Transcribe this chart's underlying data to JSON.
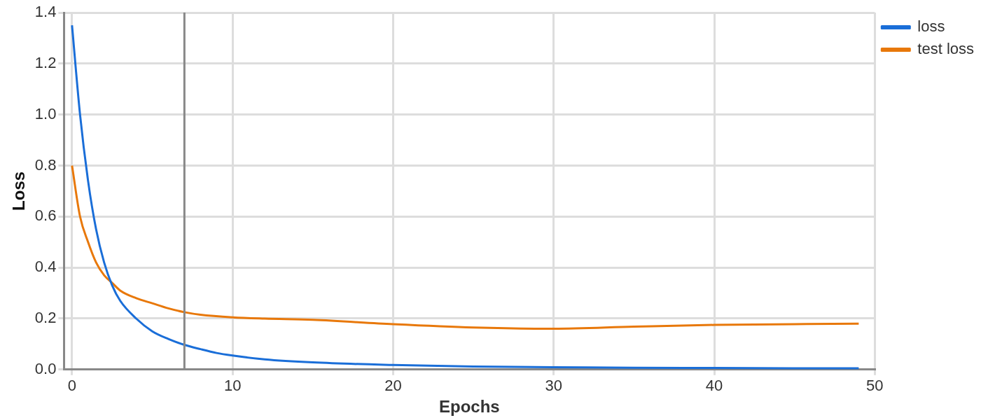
{
  "chart_data": {
    "type": "line",
    "xlabel": "Epochs",
    "ylabel": "Loss",
    "xlim": [
      -0.5,
      50
    ],
    "xticks": [
      0,
      10,
      20,
      30,
      40,
      50
    ],
    "ylim": [
      0,
      1.4
    ],
    "yticks": [
      {
        "value": 0,
        "label": "0.0"
      },
      {
        "value": 0.2,
        "label": "0.2"
      },
      {
        "value": 0.4,
        "label": "0.4"
      },
      {
        "value": 0.6,
        "label": "0.6"
      },
      {
        "value": 0.8,
        "label": "0.8"
      },
      {
        "value": 1,
        "label": "1.0"
      },
      {
        "value": 1.2,
        "label": "1.2"
      },
      {
        "value": 1.4,
        "label": "1.4"
      }
    ],
    "grid": true,
    "legend": "top right",
    "marker": "none",
    "ref_lines": [
      {
        "axis": "x",
        "value": 7,
        "color": "#888888"
      }
    ],
    "series": [
      {
        "name": "loss",
        "color": "#1a6ed8",
        "x": [
          0,
          0.5,
          1,
          1.5,
          2,
          2.5,
          3,
          4,
          5,
          6,
          7,
          8,
          9,
          10,
          12,
          15,
          20,
          25,
          30,
          35,
          40,
          45,
          49
        ],
        "values": [
          1.35,
          1.0,
          0.74,
          0.55,
          0.42,
          0.33,
          0.27,
          0.2,
          0.15,
          0.12,
          0.097,
          0.08,
          0.065,
          0.055,
          0.04,
          0.028,
          0.018,
          0.012,
          0.009,
          0.007,
          0.006,
          0.005,
          0.005
        ]
      },
      {
        "name": "test loss",
        "color": "#e8780a",
        "x": [
          0,
          0.5,
          1,
          1.5,
          2,
          2.5,
          3,
          4,
          5,
          6,
          7,
          8,
          10,
          12,
          15,
          20,
          25,
          30,
          35,
          40,
          45,
          49
        ],
        "values": [
          0.8,
          0.6,
          0.5,
          0.42,
          0.37,
          0.34,
          0.31,
          0.28,
          0.26,
          0.24,
          0.225,
          0.215,
          0.205,
          0.2,
          0.195,
          0.178,
          0.165,
          0.16,
          0.168,
          0.175,
          0.178,
          0.18
        ]
      }
    ]
  }
}
